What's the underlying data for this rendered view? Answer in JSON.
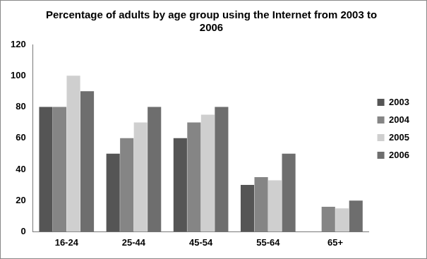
{
  "chart_data": {
    "type": "bar",
    "title": "Percentage of adults by age group using the Internet from 2003 to 2006",
    "categories": [
      "16-24",
      "25-44",
      "45-54",
      "55-64",
      "65+"
    ],
    "series": [
      {
        "name": "2003",
        "color": "#555555",
        "values": [
          80,
          50,
          60,
          30,
          null
        ]
      },
      {
        "name": "2004",
        "color": "#858585",
        "values": [
          80,
          60,
          70,
          35,
          16
        ]
      },
      {
        "name": "2005",
        "color": "#cfcfcf",
        "values": [
          100,
          70,
          75,
          33,
          15
        ]
      },
      {
        "name": "2006",
        "color": "#6e6e6e",
        "values": [
          90,
          80,
          80,
          50,
          20
        ]
      }
    ],
    "ylim": [
      0,
      120
    ],
    "yticks": [
      0,
      20,
      40,
      60,
      80,
      100,
      120
    ],
    "grid": false,
    "legend": "right"
  }
}
